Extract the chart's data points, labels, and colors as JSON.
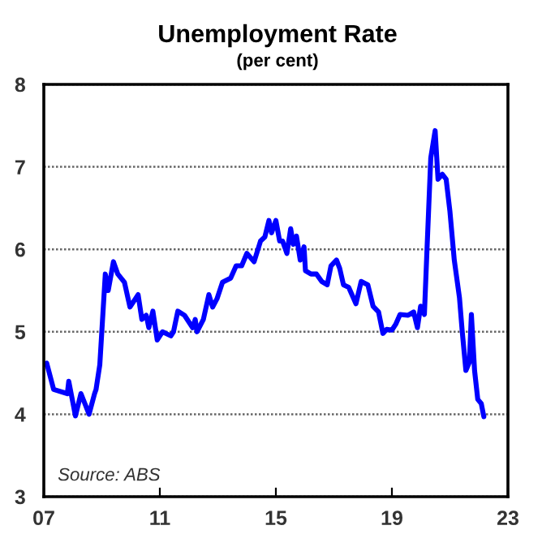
{
  "chart_data": {
    "type": "line",
    "title": "Unemployment Rate",
    "subtitle": "(per cent)",
    "annotations": [
      "Source: ABS"
    ],
    "xlim": [
      2007,
      2023
    ],
    "xticks": [
      {
        "value": 2007,
        "label": "07"
      },
      {
        "value": 2011,
        "label": "11"
      },
      {
        "value": 2015,
        "label": "15"
      },
      {
        "value": 2019,
        "label": "19"
      },
      {
        "value": 2023,
        "label": "23"
      }
    ],
    "ylim": [
      3,
      8
    ],
    "yticks": [
      3,
      4,
      5,
      6,
      7,
      8
    ],
    "grid": "y",
    "line_style": "solid",
    "series": [
      {
        "color": "#0000ff",
        "x": [
          2007.0,
          2007.1,
          2007.34,
          2007.81,
          2007.86,
          2008.09,
          2008.28,
          2008.56,
          2008.75,
          2008.8,
          2008.93,
          2009.12,
          2009.22,
          2009.4,
          2009.55,
          2009.78,
          2009.97,
          2010.25,
          2010.38,
          2010.53,
          2010.62,
          2010.76,
          2010.91,
          2011.09,
          2011.38,
          2011.47,
          2011.62,
          2011.85,
          2012.13,
          2012.22,
          2012.28,
          2012.5,
          2012.69,
          2012.82,
          2012.97,
          2013.16,
          2013.44,
          2013.63,
          2013.82,
          2014.0,
          2014.25,
          2014.47,
          2014.62,
          2014.76,
          2014.85,
          2015.0,
          2015.13,
          2015.23,
          2015.38,
          2015.51,
          2015.6,
          2015.71,
          2015.84,
          2015.97,
          2016.02,
          2016.21,
          2016.4,
          2016.58,
          2016.77,
          2016.9,
          2017.09,
          2017.2,
          2017.33,
          2017.51,
          2017.76,
          2017.94,
          2018.17,
          2018.35,
          2018.54,
          2018.69,
          2018.82,
          2019.0,
          2019.13,
          2019.28,
          2019.56,
          2019.75,
          2019.88,
          2019.99,
          2020.12,
          2020.21,
          2020.34,
          2020.49,
          2020.59,
          2020.74,
          2020.87,
          2021.0,
          2021.15,
          2021.33,
          2021.42,
          2021.55,
          2021.67,
          2021.74,
          2021.85,
          2021.96,
          2022.08,
          2022.17
        ],
        "values": [
          4.6,
          4.62,
          4.3,
          4.25,
          4.4,
          3.98,
          4.25,
          4.0,
          4.25,
          4.3,
          4.6,
          5.7,
          5.5,
          5.85,
          5.7,
          5.6,
          5.3,
          5.45,
          5.15,
          5.2,
          5.05,
          5.25,
          4.9,
          5.0,
          4.95,
          5.0,
          5.25,
          5.2,
          5.05,
          5.15,
          5.0,
          5.15,
          5.45,
          5.3,
          5.4,
          5.6,
          5.65,
          5.8,
          5.8,
          5.95,
          5.85,
          6.1,
          6.15,
          6.35,
          6.2,
          6.35,
          6.1,
          6.1,
          5.95,
          6.25,
          6.06,
          6.16,
          5.87,
          6.03,
          5.74,
          5.7,
          5.7,
          5.61,
          5.57,
          5.8,
          5.87,
          5.77,
          5.57,
          5.54,
          5.34,
          5.61,
          5.57,
          5.31,
          5.24,
          4.98,
          5.03,
          5.02,
          5.09,
          5.21,
          5.2,
          5.24,
          5.05,
          5.31,
          5.21,
          6.0,
          7.11,
          7.44,
          6.85,
          6.91,
          6.85,
          6.46,
          5.87,
          5.41,
          5.02,
          4.53,
          4.63,
          5.21,
          4.53,
          4.18,
          4.13,
          3.97
        ]
      }
    ]
  }
}
